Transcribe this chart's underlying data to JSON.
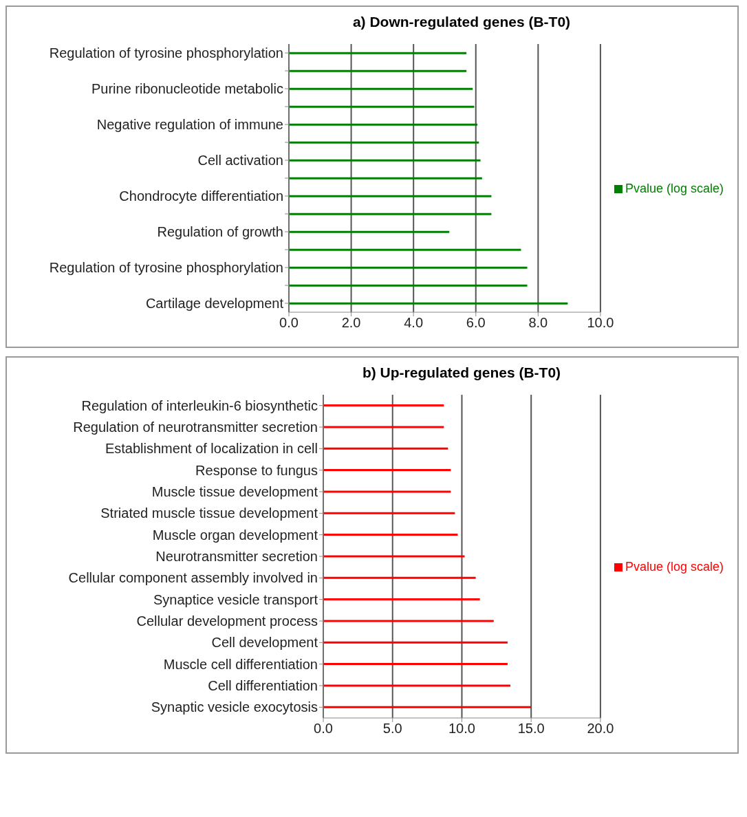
{
  "chart_data": [
    {
      "type": "bar",
      "orientation": "horizontal",
      "title": "a) Down-regulated genes (B-T0)",
      "categories": [
        "Regulation of tyrosine phosphorylation",
        null,
        "Purine ribonucleotide metabolic",
        null,
        "Negative regulation of immune",
        null,
        "Cell activation",
        null,
        "Chondrocyte differentiation",
        null,
        "Regulation of growth",
        null,
        "Regulation of tyrosine phosphorylation",
        null,
        "Cartilage development"
      ],
      "series": [
        {
          "name": "Pvalue (log scale)",
          "color": "#008000",
          "values": [
            5.7,
            5.7,
            5.9,
            5.95,
            6.05,
            6.1,
            6.15,
            6.2,
            6.5,
            6.5,
            5.15,
            7.45,
            7.65,
            7.65,
            8.95
          ]
        }
      ],
      "xlim": [
        0,
        10
      ],
      "xticks": [
        {
          "value": 0,
          "label": "0.0"
        },
        {
          "value": 2,
          "label": "2.0"
        },
        {
          "value": 4,
          "label": "4.0"
        },
        {
          "value": 6,
          "label": "6.0"
        },
        {
          "value": 8,
          "label": "8.0"
        },
        {
          "value": 10,
          "label": "10.0"
        }
      ],
      "grid": "x",
      "legend": "right"
    },
    {
      "type": "bar",
      "orientation": "horizontal",
      "title": "b) Up-regulated genes (B-T0)",
      "categories": [
        "Regulation of interleukin-6 biosynthetic",
        "Regulation of neurotransmitter secretion",
        "Establishment of localization in cell",
        "Response to fungus",
        "Muscle tissue development",
        "Striated muscle tissue development",
        "Muscle organ development",
        "Neurotransmitter secretion",
        "Cellular component assembly involved in",
        "Synaptice vesicle transport",
        "Cellular development process",
        "Cell development",
        "Muscle cell differentiation",
        "Cell differentiation",
        "Synaptic vesicle exocytosis"
      ],
      "series": [
        {
          "name": "Pvalue (log scale)",
          "color": "#ff0000",
          "values": [
            8.7,
            8.7,
            9.0,
            9.2,
            9.2,
            9.5,
            9.7,
            10.2,
            11.0,
            11.3,
            12.3,
            13.3,
            13.3,
            13.5,
            15.0
          ]
        }
      ],
      "xlim": [
        0,
        20
      ],
      "xticks": [
        {
          "value": 0,
          "label": "0.0"
        },
        {
          "value": 5,
          "label": "5.0"
        },
        {
          "value": 10,
          "label": "10.0"
        },
        {
          "value": 15,
          "label": "15.0"
        },
        {
          "value": 20,
          "label": "20.0"
        }
      ],
      "grid": "x",
      "legend": "right"
    }
  ]
}
